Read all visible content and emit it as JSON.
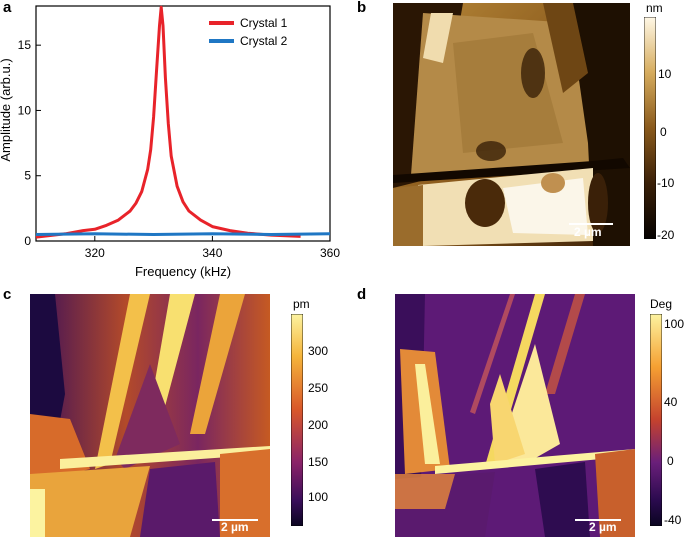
{
  "panels": {
    "a": {
      "letter": "a"
    },
    "b": {
      "letter": "b",
      "unit": "nm",
      "ticks": [
        "10",
        "0",
        "-10",
        "-20"
      ],
      "scalebar": "2 µm"
    },
    "c": {
      "letter": "c",
      "unit": "pm",
      "ticks": [
        "300",
        "250",
        "200",
        "150",
        "100"
      ],
      "scalebar": "2 µm"
    },
    "d": {
      "letter": "d",
      "unit": "Deg",
      "ticks": [
        "100",
        "40",
        "0",
        "-40"
      ],
      "scalebar": "2 µm"
    }
  },
  "colors": {
    "crystal1": "#e8232a",
    "crystal2": "#1f77c4",
    "afm_dark": "#1a0e02",
    "afm_light": "#fff8e6",
    "inferno_dark": "#0a0520",
    "inferno_light": "#fcf3a0"
  },
  "chart_data": {
    "type": "line",
    "xlabel": "Frequency (kHz)",
    "ylabel": "Amplitude (arb.u.)",
    "xlim": [
      310,
      360
    ],
    "ylim": [
      0,
      18
    ],
    "x_ticks": [
      320,
      340,
      360
    ],
    "y_ticks": [
      0,
      5,
      10,
      15
    ],
    "legend_position": "top-right",
    "series": [
      {
        "name": "Crystal 1",
        "color": "#e8232a",
        "x": [
          310,
          315,
          318,
          320,
          322,
          324,
          326,
          327,
          328,
          329,
          329.5,
          330,
          330.5,
          331,
          331.3,
          331.6,
          332,
          332.5,
          333,
          334,
          335,
          336,
          338,
          340,
          343,
          346,
          350,
          355
        ],
        "y": [
          0.3,
          0.55,
          0.8,
          0.9,
          1.2,
          1.6,
          2.3,
          2.9,
          3.8,
          5.5,
          7.0,
          9.5,
          13.0,
          16.5,
          17.9,
          16.5,
          12.5,
          9.0,
          6.5,
          4.2,
          3.0,
          2.3,
          1.6,
          1.1,
          0.8,
          0.6,
          0.45,
          0.35
        ]
      },
      {
        "name": "Crystal 2",
        "color": "#1f77c4",
        "x": [
          310,
          320,
          330,
          340,
          350,
          360
        ],
        "y": [
          0.5,
          0.55,
          0.5,
          0.55,
          0.5,
          0.55
        ]
      }
    ]
  }
}
